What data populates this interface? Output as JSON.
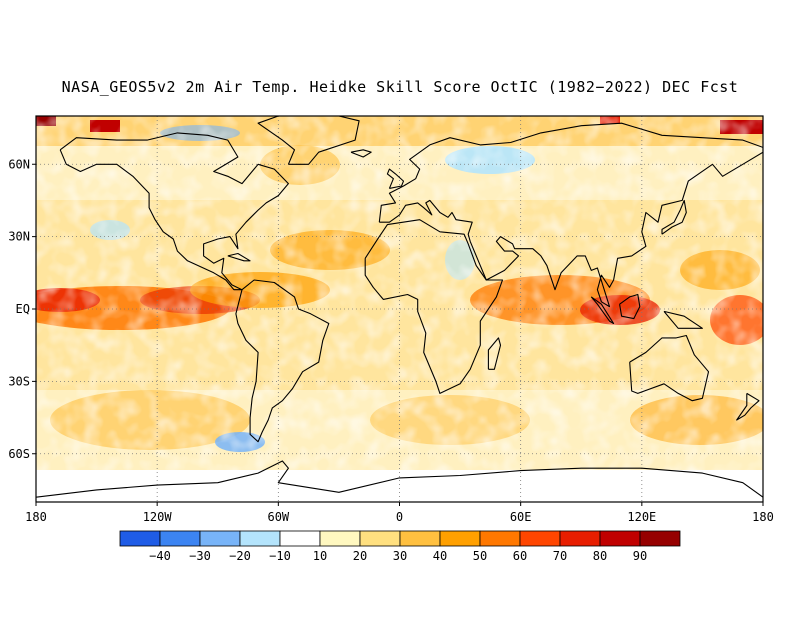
{
  "title": "NASA_GEOS5v2 2m Air Temp. Heidke Skill Score OctIC (1982−2022) DEC Fcst",
  "map": {
    "lat_labels": [
      {
        "text": "60N",
        "lat": 60
      },
      {
        "text": "30N",
        "lat": 30
      },
      {
        "text": "EQ",
        "lat": 0
      },
      {
        "text": "30S",
        "lat": -30
      },
      {
        "text": "60S",
        "lat": -60
      }
    ],
    "lon_labels": [
      {
        "text": "180",
        "lon": -180
      },
      {
        "text": "120W",
        "lon": -120
      },
      {
        "text": "60W",
        "lon": -60
      },
      {
        "text": "0",
        "lon": 0
      },
      {
        "text": "60E",
        "lon": 60
      },
      {
        "text": "120E",
        "lon": 120
      },
      {
        "text": "180",
        "lon": 180
      }
    ],
    "lat_range": [
      -80,
      80
    ],
    "lon_range": [
      -180,
      180
    ],
    "grid": true
  },
  "colorbar": {
    "labels": [
      "−40",
      "−30",
      "−20",
      "−10",
      "10",
      "20",
      "30",
      "40",
      "50",
      "60",
      "70",
      "80",
      "90"
    ],
    "colors": [
      "#1f5ce6",
      "#3c84f2",
      "#78b4f8",
      "#b4e4fc",
      "#ffffff",
      "#fff8c0",
      "#ffe080",
      "#ffc040",
      "#ffa000",
      "#ff7800",
      "#ff4600",
      "#e81e00",
      "#c00000",
      "#960000"
    ]
  }
}
